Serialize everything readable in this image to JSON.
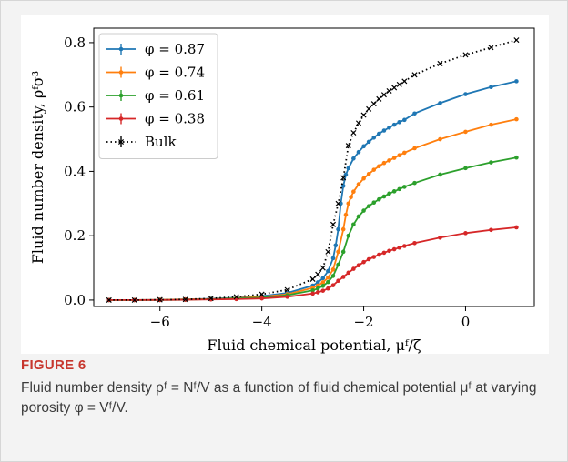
{
  "figure": {
    "label": "FIGURE 6",
    "caption": "Fluid number density ρᶠ = Nᶠ/V as a function of fluid chemical potential μᶠ at varying porosity φ = Vᶠ/V."
  },
  "chart_data": {
    "type": "line",
    "xlabel": "Fluid chemical potential, μᶠ/ζ",
    "ylabel": "Fluid number density, ρᶠσ³",
    "xlim": [
      -7.3,
      1.35
    ],
    "ylim": [
      -0.02,
      0.845
    ],
    "xticks": [
      -6,
      -4,
      -2,
      0
    ],
    "yticks": [
      0.0,
      0.2,
      0.4,
      0.6,
      0.8
    ],
    "xtick_labels": [
      "−6",
      "−4",
      "−2",
      "0"
    ],
    "ytick_labels": [
      "0.0",
      "0.2",
      "0.4",
      "0.6",
      "0.8"
    ],
    "grid": false,
    "legend_position": "top-left",
    "series": [
      {
        "name": "φ = 0.87",
        "color": "#1f77b4",
        "style": "line-dot",
        "x": [
          -7.0,
          -6.5,
          -6.0,
          -5.5,
          -5.0,
          -4.5,
          -4.0,
          -3.5,
          -3.0,
          -2.9,
          -2.8,
          -2.7,
          -2.6,
          -2.55,
          -2.5,
          -2.45,
          -2.4,
          -2.35,
          -2.3,
          -2.2,
          -2.1,
          -2.0,
          -1.9,
          -1.8,
          -1.7,
          -1.6,
          -1.5,
          -1.4,
          -1.3,
          -1.2,
          -1.0,
          -0.5,
          0.0,
          0.5,
          1.0
        ],
        "y": [
          0.0,
          0.0,
          0.001,
          0.002,
          0.004,
          0.007,
          0.012,
          0.022,
          0.045,
          0.055,
          0.068,
          0.09,
          0.13,
          0.17,
          0.22,
          0.3,
          0.355,
          0.39,
          0.41,
          0.44,
          0.46,
          0.478,
          0.492,
          0.505,
          0.517,
          0.527,
          0.536,
          0.545,
          0.553,
          0.56,
          0.58,
          0.612,
          0.64,
          0.662,
          0.68
        ]
      },
      {
        "name": "φ = 0.74",
        "color": "#ff7f0e",
        "style": "line-dot",
        "x": [
          -7.0,
          -6.5,
          -6.0,
          -5.5,
          -5.0,
          -4.5,
          -4.0,
          -3.5,
          -3.0,
          -2.9,
          -2.8,
          -2.7,
          -2.6,
          -2.5,
          -2.4,
          -2.35,
          -2.3,
          -2.25,
          -2.2,
          -2.1,
          -2.0,
          -1.9,
          -1.8,
          -1.7,
          -1.6,
          -1.5,
          -1.4,
          -1.3,
          -1.2,
          -1.0,
          -0.5,
          0.0,
          0.5,
          1.0
        ],
        "y": [
          0.0,
          0.0,
          0.001,
          0.002,
          0.003,
          0.006,
          0.01,
          0.018,
          0.038,
          0.045,
          0.055,
          0.07,
          0.095,
          0.15,
          0.22,
          0.265,
          0.3,
          0.32,
          0.337,
          0.36,
          0.378,
          0.392,
          0.405,
          0.416,
          0.426,
          0.434,
          0.442,
          0.45,
          0.458,
          0.472,
          0.5,
          0.523,
          0.545,
          0.562
        ]
      },
      {
        "name": "φ = 0.61",
        "color": "#2ca02c",
        "style": "line-dot",
        "x": [
          -7.0,
          -6.5,
          -6.0,
          -5.5,
          -5.0,
          -4.5,
          -4.0,
          -3.5,
          -3.0,
          -2.9,
          -2.8,
          -2.7,
          -2.6,
          -2.5,
          -2.4,
          -2.3,
          -2.2,
          -2.1,
          -2.0,
          -1.9,
          -1.8,
          -1.7,
          -1.6,
          -1.5,
          -1.4,
          -1.3,
          -1.2,
          -1.0,
          -0.5,
          0.0,
          0.5,
          1.0
        ],
        "y": [
          0.0,
          0.0,
          0.0,
          0.001,
          0.003,
          0.005,
          0.008,
          0.015,
          0.03,
          0.036,
          0.044,
          0.056,
          0.075,
          0.11,
          0.15,
          0.2,
          0.235,
          0.26,
          0.278,
          0.292,
          0.303,
          0.313,
          0.322,
          0.331,
          0.338,
          0.345,
          0.352,
          0.364,
          0.39,
          0.41,
          0.428,
          0.443
        ]
      },
      {
        "name": "φ = 0.38",
        "color": "#d62728",
        "style": "line-dot",
        "x": [
          -7.0,
          -6.5,
          -6.0,
          -5.5,
          -5.0,
          -4.5,
          -4.0,
          -3.5,
          -3.0,
          -2.9,
          -2.8,
          -2.7,
          -2.6,
          -2.5,
          -2.4,
          -2.3,
          -2.2,
          -2.1,
          -2.0,
          -1.9,
          -1.8,
          -1.7,
          -1.6,
          -1.5,
          -1.4,
          -1.3,
          -1.2,
          -1.0,
          -0.5,
          0.0,
          0.5,
          1.0
        ],
        "y": [
          0.0,
          0.0,
          0.0,
          0.001,
          0.002,
          0.003,
          0.005,
          0.01,
          0.02,
          0.024,
          0.029,
          0.036,
          0.046,
          0.06,
          0.072,
          0.085,
          0.097,
          0.108,
          0.118,
          0.127,
          0.134,
          0.141,
          0.147,
          0.153,
          0.158,
          0.163,
          0.168,
          0.177,
          0.194,
          0.208,
          0.218,
          0.226
        ]
      },
      {
        "name": "Bulk",
        "color": "#000000",
        "style": "dotted-x",
        "x": [
          -7.0,
          -6.5,
          -6.0,
          -5.5,
          -5.0,
          -4.5,
          -4.0,
          -3.5,
          -3.0,
          -2.9,
          -2.8,
          -2.7,
          -2.6,
          -2.5,
          -2.4,
          -2.3,
          -2.2,
          -2.1,
          -2.0,
          -1.9,
          -1.8,
          -1.7,
          -1.6,
          -1.5,
          -1.4,
          -1.3,
          -1.2,
          -1.0,
          -0.5,
          0.0,
          0.5,
          1.0
        ],
        "y": [
          0.0,
          0.0,
          0.001,
          0.002,
          0.005,
          0.01,
          0.018,
          0.032,
          0.065,
          0.08,
          0.1,
          0.15,
          0.235,
          0.3,
          0.38,
          0.48,
          0.52,
          0.55,
          0.575,
          0.594,
          0.61,
          0.625,
          0.638,
          0.65,
          0.66,
          0.67,
          0.68,
          0.7,
          0.735,
          0.762,
          0.785,
          0.808
        ]
      }
    ]
  }
}
